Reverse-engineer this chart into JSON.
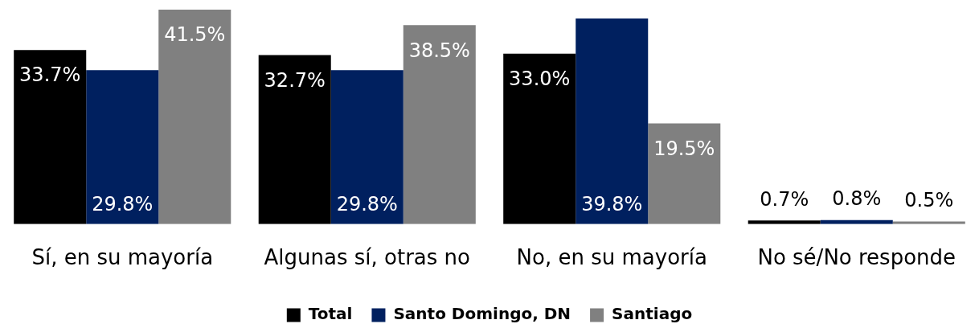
{
  "chart_data": {
    "type": "bar",
    "categories": [
      "Sí, en su mayoría",
      "Algunas sí, otras no",
      "No, en su mayoría",
      "No sé/No responde"
    ],
    "series": [
      {
        "name": "Total",
        "color": "#000000",
        "values": [
          33.7,
          32.7,
          33.0,
          0.7
        ],
        "value_labels": [
          "33.7%",
          "32.7%",
          "33.0%",
          "0.7%"
        ]
      },
      {
        "name": "Santo Domingo, DN",
        "color": "#00205f",
        "values": [
          29.8,
          29.8,
          39.8,
          0.8
        ],
        "value_labels": [
          "29.8%",
          "29.8%",
          "39.8%",
          "0.8%"
        ]
      },
      {
        "name": "Santiago",
        "color": "#808080",
        "values": [
          41.5,
          38.5,
          19.5,
          0.5
        ],
        "value_labels": [
          "41.5%",
          "38.5%",
          "19.5%",
          "0.5%"
        ]
      }
    ],
    "legend": "bottom"
  }
}
